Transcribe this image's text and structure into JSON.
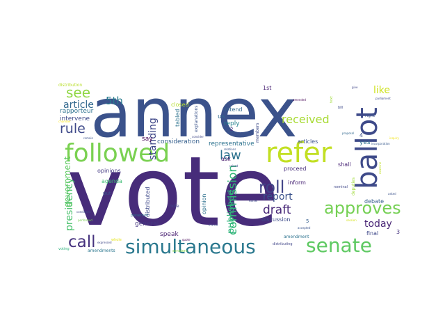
{
  "words": [
    {
      "text": "vote",
      "color": "#472c7a"
    },
    {
      "text": "annex",
      "color": "#3b528b"
    },
    {
      "text": "followed",
      "color": "#7ad151"
    },
    {
      "text": "refer",
      "color": "#c2df23"
    },
    {
      "text": "ballot",
      "color": "#3e4a89"
    },
    {
      "text": "simultaneous",
      "color": "#2a788e"
    },
    {
      "text": "senate",
      "color": "#5ec962"
    },
    {
      "text": "approves",
      "color": "#75d054"
    },
    {
      "text": "roll",
      "color": "#414487"
    },
    {
      "text": "call",
      "color": "#46327e"
    },
    {
      "text": "see",
      "color": "#8fd744"
    },
    {
      "text": "rule",
      "color": "#3e4989"
    },
    {
      "text": "law",
      "color": "#2c728e"
    },
    {
      "text": "draft",
      "color": "#482878"
    },
    {
      "text": "commission",
      "color": "#35b779"
    },
    {
      "text": "report",
      "color": "#3b528b"
    },
    {
      "text": "received",
      "color": "#a8db34"
    },
    {
      "text": "published",
      "color": "#2fb47c"
    },
    {
      "text": "presidency",
      "color": "#4ac16d"
    },
    {
      "text": "today",
      "color": "#482475"
    },
    {
      "text": "like",
      "color": "#cde11d"
    },
    {
      "text": "article",
      "color": "#31688e"
    },
    {
      "text": "5th",
      "color": "#287c8e"
    },
    {
      "text": "standing",
      "color": "#3f4788"
    },
    {
      "text": "government",
      "color": "#5ec962"
    },
    {
      "text": "rapporteur",
      "color": "#2d718e"
    },
    {
      "text": "intervene",
      "color": "#3e4a89"
    },
    {
      "text": "representative",
      "color": "#2c728e"
    },
    {
      "text": "consideration",
      "color": "#355f8d"
    },
    {
      "text": "general",
      "color": "#453781"
    },
    {
      "text": "opinions",
      "color": "#443a83"
    },
    {
      "text": "agenda",
      "color": "#3dbc74"
    },
    {
      "text": "speak",
      "color": "#481f70"
    },
    {
      "text": "debate",
      "color": "#355e8d"
    },
    {
      "text": "proceed",
      "color": "#472d7b"
    },
    {
      "text": "discussion",
      "color": "#3e4c8a"
    },
    {
      "text": "amendments",
      "color": "#2a768e"
    },
    {
      "text": "amendment",
      "color": "#2c728e"
    },
    {
      "text": "articles",
      "color": "#3b528b"
    },
    {
      "text": "shall",
      "color": "#482576"
    },
    {
      "text": "final",
      "color": "#3f4889"
    },
    {
      "text": "inform",
      "color": "#482475"
    },
    {
      "text": "reply",
      "color": "#26828e"
    },
    {
      "text": "intend",
      "color": "#31688e"
    },
    {
      "text": "tabled",
      "color": "#2c738e"
    },
    {
      "text": "closed",
      "color": "#b5de2b"
    },
    {
      "text": "distributed",
      "color": "#3e4989"
    },
    {
      "text": "opinion",
      "color": "#2d708e"
    },
    {
      "text": "explanations",
      "color": "#3a538b"
    },
    {
      "text": "distribution",
      "color": "#b8de29"
    },
    {
      "text": "members",
      "color": "#3e4c8a"
    },
    {
      "text": "distributing",
      "color": "#404588"
    },
    {
      "text": "nominal",
      "color": "#3f4788"
    },
    {
      "text": "deputies",
      "color": "#a0da39"
    },
    {
      "text": "presented",
      "color": "#2d708e"
    },
    {
      "text": "note",
      "color": "#404688"
    },
    {
      "text": "put",
      "color": "#3b528b"
    },
    {
      "text": "ask",
      "color": "#481a6c"
    },
    {
      "text": "us",
      "color": "#31688e"
    },
    {
      "text": "say",
      "color": "#440154"
    },
    {
      "text": "yes",
      "color": "#2e6f8e"
    },
    {
      "text": "1st",
      "color": "#482173"
    },
    {
      "text": "right",
      "color": "#3b528b"
    },
    {
      "text": "bill",
      "color": "#3e4c8a"
    },
    {
      "text": "text",
      "color": "#9fda3a"
    },
    {
      "text": "voting",
      "color": "#2db27d"
    },
    {
      "text": "senators",
      "color": "#89d548"
    },
    {
      "text": "whole",
      "color": "#e5e419"
    },
    {
      "text": "accepted",
      "color": "#3a548c"
    },
    {
      "text": "relations",
      "color": "#39568c"
    },
    {
      "text": "2",
      "color": "#472f7d"
    },
    {
      "text": "3",
      "color": "#46337f"
    },
    {
      "text": "4",
      "color": "#3d4e8a"
    },
    {
      "text": "5",
      "color": "#355f8d"
    },
    {
      "text": "give",
      "color": "#404688"
    },
    {
      "text": "parliament",
      "color": "#3e4989"
    },
    {
      "text": "amended",
      "color": "#440154"
    },
    {
      "text": "proposal",
      "color": "#31688e"
    },
    {
      "text": "chamber",
      "color": "#fde725"
    },
    {
      "text": "remain",
      "color": "#3b528b"
    },
    {
      "text": "consider",
      "color": "#3f4788"
    },
    {
      "text": "raised",
      "color": "#3f4889"
    },
    {
      "text": "conditions",
      "color": "#3e4a89"
    },
    {
      "text": "expressed",
      "color": "#3f4788"
    },
    {
      "text": "quote",
      "color": "#440154"
    },
    {
      "text": "earlier",
      "color": "#3e4989"
    },
    {
      "text": "d'ance",
      "color": "#3f4788"
    },
    {
      "text": "examine",
      "color": "#c0df25"
    },
    {
      "text": "session",
      "color": "#d5e21a"
    },
    {
      "text": "inquiry",
      "color": "#f1e51d"
    },
    {
      "text": "performed",
      "color": "#7ad151"
    },
    {
      "text": "incorporation",
      "color": "#38598c"
    },
    {
      "text": "asked",
      "color": "#3b528b"
    }
  ]
}
